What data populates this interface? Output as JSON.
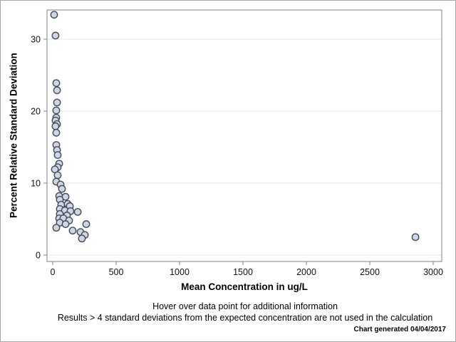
{
  "chart_data": {
    "type": "scatter",
    "title": "",
    "xlabel": "Mean Concentration in ug/L",
    "ylabel": "Percent Relative Standard Deviation",
    "xlim": [
      -45,
      3070
    ],
    "ylim": [
      -0.9,
      34.1
    ],
    "x_ticks": [
      0,
      500,
      1000,
      1500,
      2000,
      2500,
      3000
    ],
    "y_ticks": [
      0,
      10,
      20,
      30
    ],
    "grid": "horizontal-only",
    "legend_position": "none",
    "marker_shape": "circle",
    "marker_fill": "#cdd6e7",
    "marker_stroke": "#454b55",
    "points": [
      [
        11,
        33.4
      ],
      [
        22,
        30.5
      ],
      [
        28,
        23.9
      ],
      [
        34,
        22.9
      ],
      [
        34,
        21.2
      ],
      [
        28,
        20.1
      ],
      [
        28,
        19.1
      ],
      [
        22,
        18.7
      ],
      [
        34,
        18.2
      ],
      [
        22,
        17.9
      ],
      [
        28,
        17.0
      ],
      [
        28,
        15.3
      ],
      [
        34,
        14.6
      ],
      [
        39,
        13.9
      ],
      [
        51,
        12.7
      ],
      [
        39,
        12.2
      ],
      [
        17,
        11.9
      ],
      [
        39,
        11.1
      ],
      [
        28,
        10.2
      ],
      [
        62,
        9.8
      ],
      [
        73,
        9.2
      ],
      [
        51,
        8.2
      ],
      [
        101,
        8.1
      ],
      [
        56,
        7.7
      ],
      [
        67,
        7.0
      ],
      [
        118,
        7.1
      ],
      [
        135,
        6.8
      ],
      [
        56,
        6.4
      ],
      [
        96,
        6.2
      ],
      [
        140,
        6.1
      ],
      [
        197,
        6.0
      ],
      [
        56,
        5.7
      ],
      [
        112,
        5.5
      ],
      [
        51,
        5.1
      ],
      [
        84,
        5.1
      ],
      [
        129,
        4.8
      ],
      [
        56,
        4.5
      ],
      [
        101,
        4.3
      ],
      [
        264,
        4.3
      ],
      [
        28,
        3.8
      ],
      [
        157,
        3.4
      ],
      [
        219,
        3.2
      ],
      [
        253,
        2.8
      ],
      [
        230,
        2.3
      ],
      [
        2860,
        2.5
      ]
    ]
  },
  "footnotes": {
    "hover": "Hover over data point for additional information",
    "exclusion": "Results > 4 standard deviations from the expected concentration are not used in the calculation",
    "generated": "Chart generated 04/04/2017"
  }
}
